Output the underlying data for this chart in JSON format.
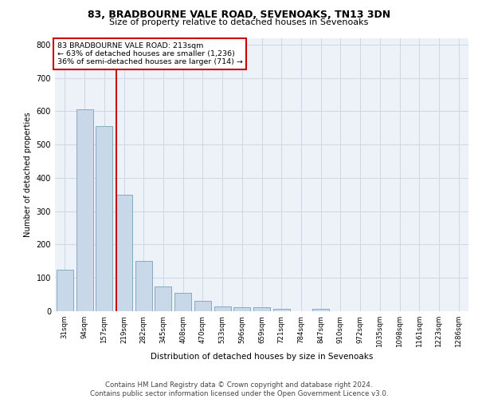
{
  "title1": "83, BRADBOURNE VALE ROAD, SEVENOAKS, TN13 3DN",
  "title2": "Size of property relative to detached houses in Sevenoaks",
  "xlabel": "Distribution of detached houses by size in Sevenoaks",
  "ylabel": "Number of detached properties",
  "categories": [
    "31sqm",
    "94sqm",
    "157sqm",
    "219sqm",
    "282sqm",
    "345sqm",
    "408sqm",
    "470sqm",
    "533sqm",
    "596sqm",
    "659sqm",
    "721sqm",
    "784sqm",
    "847sqm",
    "910sqm",
    "972sqm",
    "1035sqm",
    "1098sqm",
    "1161sqm",
    "1223sqm",
    "1286sqm"
  ],
  "values": [
    125,
    605,
    555,
    350,
    150,
    75,
    55,
    30,
    15,
    12,
    12,
    7,
    0,
    8,
    0,
    0,
    0,
    0,
    0,
    0,
    0
  ],
  "bar_color": "#c8d8e8",
  "bar_edge_color": "#7aa0bb",
  "red_line_color": "#cc0000",
  "annotation_box_edge_color": "#cc0000",
  "grid_color": "#ccd8e4",
  "background_color": "#edf2f8",
  "footer_text": "Contains HM Land Registry data © Crown copyright and database right 2024.\nContains public sector information licensed under the Open Government Licence v3.0.",
  "ylim": [
    0,
    820
  ],
  "yticks": [
    0,
    100,
    200,
    300,
    400,
    500,
    600,
    700,
    800
  ],
  "red_line_x": 2.62
}
